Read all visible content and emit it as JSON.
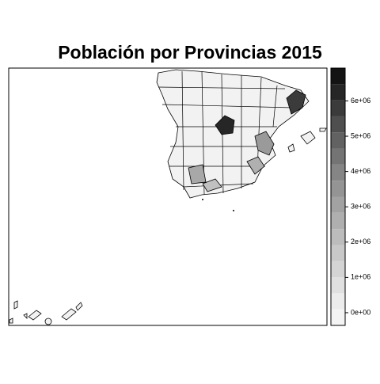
{
  "chart_data": {
    "type": "choropleth",
    "title": "Población por Provincias 2015",
    "colorbar": {
      "lim": [
        -360000,
        6930000
      ],
      "colors": [
        "#f4f4f4",
        "#ececec",
        "#e0e0e0",
        "#d4d4d4",
        "#c8c8c8",
        "#bcbcbc",
        "#afafaf",
        "#a2a2a2",
        "#949494",
        "#858585",
        "#747474",
        "#626262",
        "#4f4f4f",
        "#3b3b3b",
        "#262626",
        "#141414"
      ],
      "ticks": [
        {
          "value": 0,
          "label": "0e+00"
        },
        {
          "value": 1000000,
          "label": "1e+06"
        },
        {
          "value": 2000000,
          "label": "2e+06"
        },
        {
          "value": 3000000,
          "label": "3e+06"
        },
        {
          "value": 4000000,
          "label": "4e+06"
        },
        {
          "value": 5000000,
          "label": "5e+06"
        },
        {
          "value": 6000000,
          "label": "6e+06"
        }
      ]
    }
  }
}
